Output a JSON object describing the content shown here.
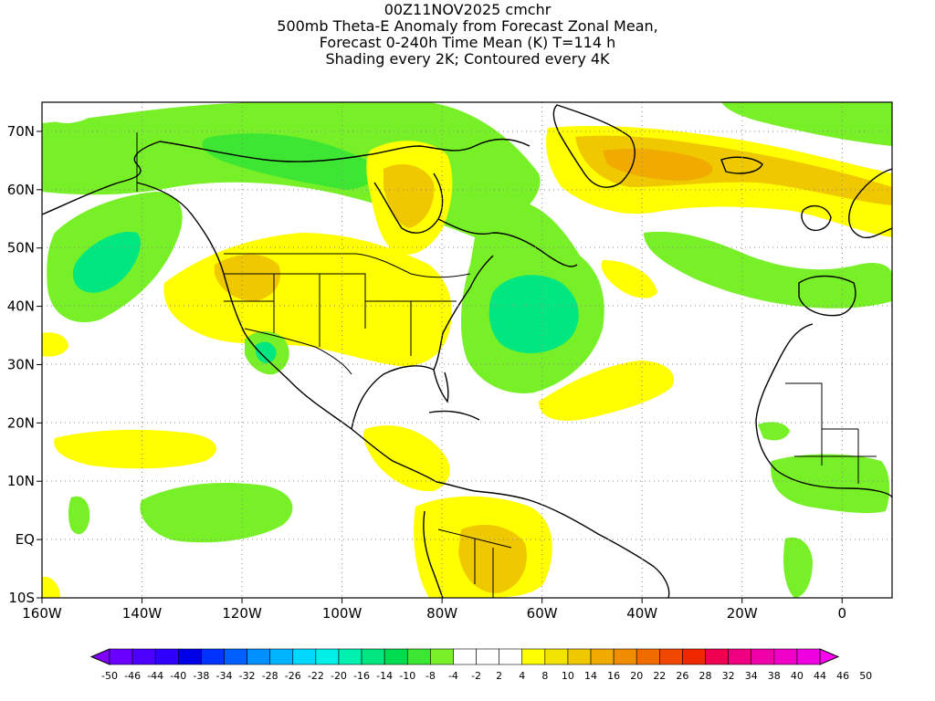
{
  "title": {
    "line1": "00Z11NOV2025 cmchr",
    "line2": "500mb Theta-E Anomaly from Forecast Zonal Mean,",
    "line3": "Forecast 0-240h Time Mean (K) T=114 h",
    "line4": "Shading every 2K; Contoured every 4K"
  },
  "map": {
    "lon_range": [
      -160,
      10
    ],
    "lat_range": [
      -10,
      75
    ],
    "lon_ticks": [
      {
        "value": -160,
        "label": "160W"
      },
      {
        "value": -140,
        "label": "140W"
      },
      {
        "value": -120,
        "label": "120W"
      },
      {
        "value": -100,
        "label": "100W"
      },
      {
        "value": -80,
        "label": "80W"
      },
      {
        "value": -60,
        "label": "60W"
      },
      {
        "value": -40,
        "label": "40W"
      },
      {
        "value": -20,
        "label": "20W"
      },
      {
        "value": 0,
        "label": "0"
      }
    ],
    "lat_ticks": [
      {
        "value": 70,
        "label": "70N"
      },
      {
        "value": 60,
        "label": "60N"
      },
      {
        "value": 50,
        "label": "50N"
      },
      {
        "value": 40,
        "label": "40N"
      },
      {
        "value": 30,
        "label": "30N"
      },
      {
        "value": 20,
        "label": "20N"
      },
      {
        "value": 10,
        "label": "10N"
      },
      {
        "value": 0,
        "label": "EQ"
      },
      {
        "value": -10,
        "label": "10S"
      }
    ]
  },
  "colorbar": {
    "labels": [
      "-50",
      "-46",
      "-44",
      "-40",
      "-38",
      "-34",
      "-32",
      "-28",
      "-26",
      "-22",
      "-20",
      "-16",
      "-14",
      "-10",
      "-8",
      "-4",
      "-2",
      "2",
      "4",
      "8",
      "10",
      "14",
      "16",
      "20",
      "22",
      "26",
      "28",
      "32",
      "34",
      "38",
      "40",
      "44",
      "46",
      "50"
    ],
    "colors": [
      "#8000ff",
      "#6a00ff",
      "#4c00ff",
      "#2f00ff",
      "#0000e8",
      "#0033ff",
      "#0060ff",
      "#0090ff",
      "#00b4ff",
      "#00d8ff",
      "#00f0e8",
      "#00f0b0",
      "#00e680",
      "#00dc50",
      "#3ce632",
      "#78f028",
      "#ffffff",
      "#ffffff",
      "#ffffff",
      "#ffff00",
      "#f2e400",
      "#f0c800",
      "#f0aa00",
      "#f08c00",
      "#f06c00",
      "#f04800",
      "#f02800",
      "#f00050",
      "#f00080",
      "#f000a8",
      "#f000c8",
      "#f000e0",
      "#ff00f0"
    ]
  },
  "colors": {
    "green_light": "#78f028",
    "green_mid": "#3ce632",
    "cyan": "#00e680",
    "yellow": "#ffff00",
    "gold": "#f0c800",
    "orange": "#f0aa00"
  }
}
